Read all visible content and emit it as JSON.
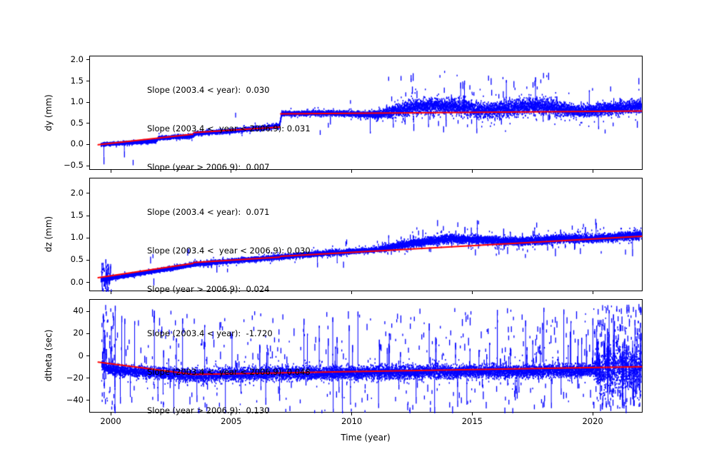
{
  "figure": {
    "background": "#ffffff",
    "point_color": "#0000ff",
    "trend_color": "#ff0000"
  },
  "chart_data": {
    "type": "scatter",
    "title": "",
    "xlabel": "Time (year)",
    "xlim": [
      1999.11,
      2022.07
    ],
    "grid": false,
    "legend": "none",
    "xticks": [
      {
        "v": 2000,
        "label": "2000"
      },
      {
        "v": 2005,
        "label": "2005"
      },
      {
        "v": 2010,
        "label": "2010"
      },
      {
        "v": 2015,
        "label": "2015"
      },
      {
        "v": 2020,
        "label": "2020"
      }
    ],
    "panels": [
      {
        "name": "dy",
        "ylabel": "dy (mm)",
        "ylim": [
          -0.6,
          2.1
        ],
        "yticks": [
          {
            "v": 2.0,
            "label": "2.0"
          },
          {
            "v": 1.5,
            "label": "1.5"
          },
          {
            "v": 1.0,
            "label": "1.0"
          },
          {
            "v": 0.5,
            "label": "0.5"
          },
          {
            "v": 0.0,
            "label": "0.0"
          },
          {
            "v": -0.5,
            "label": "−0.5"
          }
        ],
        "annotations": [
          "Slope (2003.4 < year):  0.030",
          "Slope (2003.4 <  year < 2006.9): 0.031",
          "Slope (year > 2006.9):  0.007"
        ],
        "slopes": {
          "all_years": 0.03,
          "between_2003_4_and_2006_9": 0.031,
          "after_2006_9": 0.007
        },
        "trend_segments": [
          [
            1999.45,
            0.01,
            2003.38,
            0.26
          ],
          [
            2003.42,
            0.3,
            2006.98,
            0.43
          ],
          [
            2007.02,
            0.74,
            2022.0,
            0.81
          ]
        ],
        "scatter_model": {
          "t_range": [
            1999.55,
            2021.97
          ],
          "mean": [
            [
              1999.55,
              0.02
            ],
            [
              2001.8,
              0.1
            ],
            [
              2001.95,
              0.17
            ],
            [
              2003.35,
              0.22
            ],
            [
              2003.5,
              0.28
            ],
            [
              2005.0,
              0.34
            ],
            [
              2006.95,
              0.45
            ],
            [
              2007.05,
              0.75
            ],
            [
              2009.0,
              0.76
            ],
            [
              2011.0,
              0.72
            ],
            [
              2012.5,
              0.9
            ],
            [
              2013.5,
              0.95
            ],
            [
              2014.5,
              0.9
            ],
            [
              2015.5,
              0.82
            ],
            [
              2016.5,
              0.86
            ],
            [
              2017.5,
              0.95
            ],
            [
              2018.5,
              0.86
            ],
            [
              2019.5,
              0.8
            ],
            [
              2020.5,
              0.86
            ],
            [
              2021.97,
              0.92
            ]
          ],
          "band": [
            [
              1999.55,
              0.05
            ],
            [
              2007.0,
              0.07
            ],
            [
              2010.5,
              0.09
            ],
            [
              2011.5,
              0.18
            ],
            [
              2012.5,
              0.25
            ],
            [
              2018.5,
              0.27
            ],
            [
              2019.5,
              0.2
            ],
            [
              2021.97,
              0.22
            ]
          ],
          "outlier_prob": [
            [
              1999.55,
              0.004
            ],
            [
              2011.0,
              0.004
            ],
            [
              2012.0,
              0.05
            ],
            [
              2018.5,
              0.05
            ],
            [
              2019.0,
              0.02
            ],
            [
              2021.97,
              0.03
            ]
          ],
          "outlier_offset": [
            -0.5,
            0.85
          ]
        }
      },
      {
        "name": "dz",
        "ylabel": "dz (mm)",
        "ylim": [
          -0.2,
          2.35
        ],
        "yticks": [
          {
            "v": 2.0,
            "label": "2.0"
          },
          {
            "v": 1.5,
            "label": "1.5"
          },
          {
            "v": 1.0,
            "label": "1.0"
          },
          {
            "v": 0.5,
            "label": "0.5"
          },
          {
            "v": 0.0,
            "label": "0.0"
          }
        ],
        "annotations": [
          "Slope (2003.4 < year):  0.071",
          "Slope (2003.4 <  year < 2006.9): 0.030",
          "Slope (year > 2006.9):  0.024"
        ],
        "slopes": {
          "all_years": 0.071,
          "between_2003_4_and_2006_9": 0.03,
          "after_2006_9": 0.024
        },
        "trend_segments": [
          [
            1999.45,
            0.12,
            2003.38,
            0.44
          ],
          [
            2003.42,
            0.46,
            2006.98,
            0.58
          ],
          [
            2007.02,
            0.6,
            2022.0,
            1.05
          ]
        ],
        "scatter_model": {
          "t_range": [
            1999.55,
            2021.97
          ],
          "mean": [
            [
              1999.55,
              0.07
            ],
            [
              2003.4,
              0.42
            ],
            [
              2005.0,
              0.5
            ],
            [
              2006.9,
              0.58
            ],
            [
              2009.0,
              0.68
            ],
            [
              2011.0,
              0.75
            ],
            [
              2012.5,
              0.9
            ],
            [
              2014.0,
              1.0
            ],
            [
              2015.5,
              0.97
            ],
            [
              2017.0,
              0.93
            ],
            [
              2018.5,
              1.0
            ],
            [
              2020.0,
              1.0
            ],
            [
              2021.97,
              1.08
            ]
          ],
          "band": [
            [
              1999.55,
              0.05
            ],
            [
              2007.0,
              0.07
            ],
            [
              2011.0,
              0.08
            ],
            [
              2012.0,
              0.13
            ],
            [
              2021.97,
              0.13
            ]
          ],
          "outlier_prob": [
            [
              1999.55,
              0.5
            ],
            [
              1999.9,
              0.5
            ],
            [
              2000.0,
              0.01
            ],
            [
              2011.0,
              0.01
            ],
            [
              2012.0,
              0.03
            ],
            [
              2021.97,
              0.03
            ]
          ],
          "outlier_offset": [
            -0.3,
            0.45
          ]
        }
      },
      {
        "name": "dtheta",
        "ylabel": "dtheta (sec)",
        "ylim": [
          -51,
          51
        ],
        "yticks": [
          {
            "v": 40,
            "label": "40"
          },
          {
            "v": 20,
            "label": "20"
          },
          {
            "v": 0,
            "label": "0"
          },
          {
            "v": -20,
            "label": "−20"
          },
          {
            "v": -40,
            "label": "−40"
          }
        ],
        "annotations": [
          "Slope (2003.4 < year):  -1.720",
          "Slope (2003.4 <  year < 2006.9): 0.048",
          "Slope (year > 2006.9):  0.130"
        ],
        "slopes": {
          "all_years": -1.72,
          "between_2003_4_and_2006_9": 0.048,
          "after_2006_9": 0.13
        },
        "trend_segments": [
          [
            1999.45,
            -5.0,
            2003.38,
            -16.0
          ],
          [
            2003.42,
            -16.0,
            2006.98,
            -14.8
          ],
          [
            2007.02,
            -14.6,
            2022.0,
            -9.2
          ]
        ],
        "scatter_model": {
          "t_range": [
            1999.58,
            2021.97
          ],
          "mean": [
            [
              1999.58,
              -8
            ],
            [
              2000.0,
              -12
            ],
            [
              2003.4,
              -17
            ],
            [
              2007.0,
              -15
            ],
            [
              2012.0,
              -14
            ],
            [
              2017.0,
              -13
            ],
            [
              2020.0,
              -12
            ],
            [
              2021.97,
              -10
            ]
          ],
          "band": [
            [
              1999.58,
              6
            ],
            [
              2003.0,
              8
            ],
            [
              2020.0,
              8
            ],
            [
              2020.3,
              25
            ],
            [
              2021.97,
              25
            ]
          ],
          "outlier_prob": [
            [
              1999.58,
              0.55
            ],
            [
              2000.05,
              0.55
            ],
            [
              2000.2,
              0.1
            ],
            [
              2009.0,
              0.1
            ],
            [
              2013.0,
              0.12
            ],
            [
              2019.9,
              0.12
            ],
            [
              2020.2,
              0.6
            ],
            [
              2021.97,
              0.6
            ]
          ],
          "outlier_offset": [
            -34,
            58
          ]
        }
      }
    ]
  }
}
